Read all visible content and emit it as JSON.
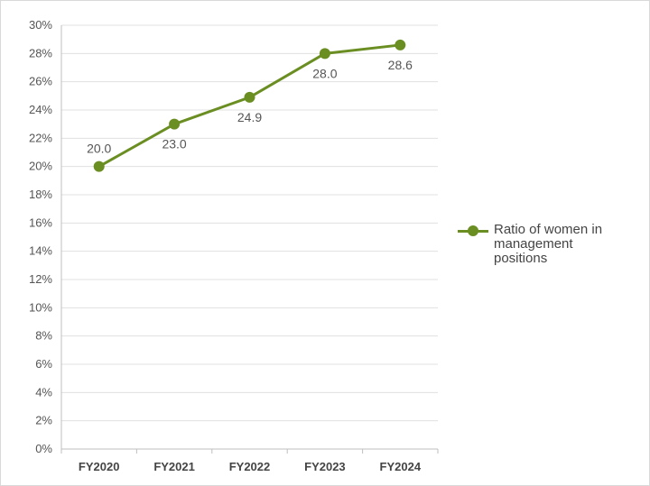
{
  "chart_data": {
    "type": "line",
    "categories": [
      "FY2020",
      "FY2021",
      "FY2022",
      "FY2023",
      "FY2024"
    ],
    "series": [
      {
        "name": "Ratio of women in management positions",
        "values": [
          20.0,
          23.0,
          24.9,
          28.0,
          28.6
        ]
      }
    ],
    "data_labels": [
      "20.0",
      "23.0",
      "24.9",
      "28.0",
      "28.6"
    ],
    "y_ticks": [
      0,
      2,
      4,
      6,
      8,
      10,
      12,
      14,
      16,
      18,
      20,
      22,
      24,
      26,
      28,
      30
    ],
    "y_tick_labels": [
      "0%",
      "2%",
      "4%",
      "6%",
      "8%",
      "10%",
      "12%",
      "14%",
      "16%",
      "18%",
      "20%",
      "22%",
      "24%",
      "26%",
      "28%",
      "30%"
    ],
    "ylim": [
      0,
      30
    ],
    "grid": true,
    "legend_position": "right",
    "title": "",
    "xlabel": "",
    "ylabel": "",
    "colors": {
      "series": "#6b8e23",
      "grid": "#e0e0e0",
      "axis": "#bfbfbf"
    }
  }
}
